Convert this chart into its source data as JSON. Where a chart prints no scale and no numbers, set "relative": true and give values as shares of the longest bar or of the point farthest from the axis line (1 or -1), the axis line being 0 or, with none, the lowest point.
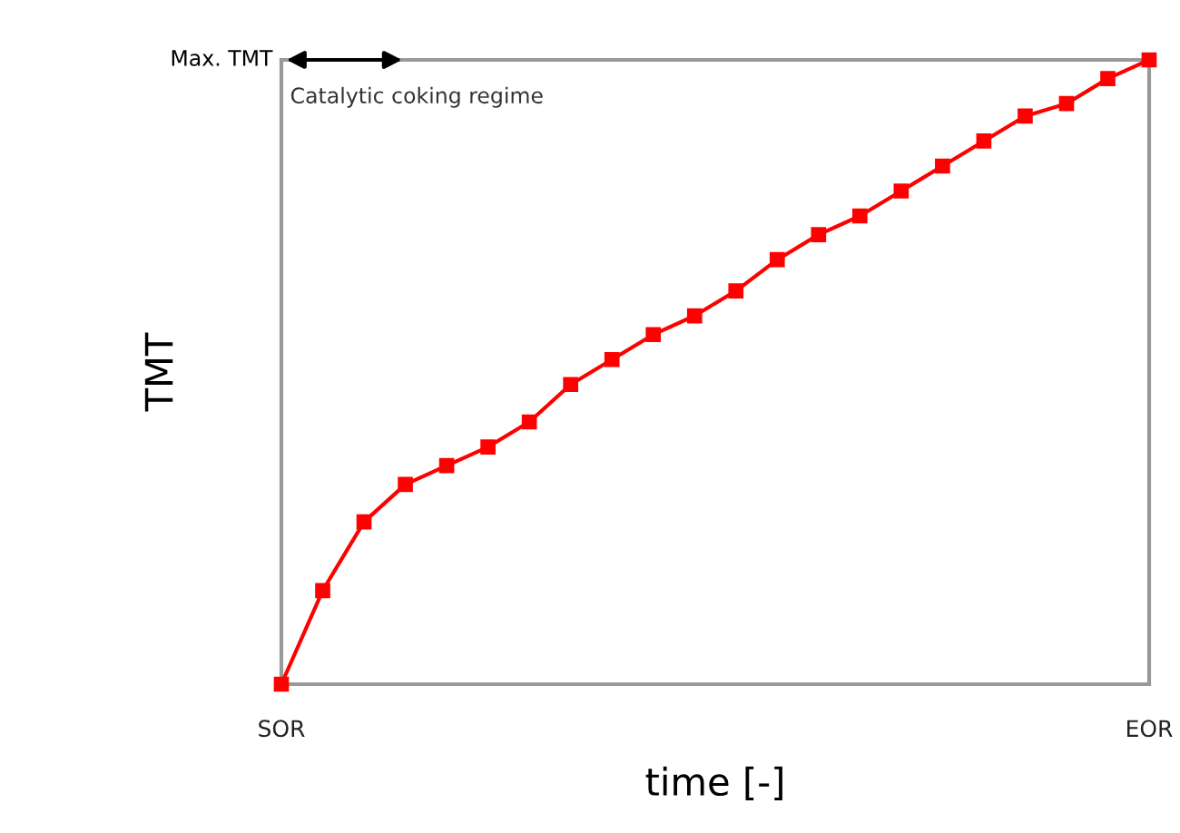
{
  "chart_data": {
    "type": "line",
    "relative": true,
    "xlabel": "time [-]",
    "ylabel": "TMT",
    "categories": [
      "SOR",
      null,
      null,
      null,
      null,
      null,
      null,
      null,
      null,
      null,
      null,
      null,
      null,
      null,
      null,
      null,
      null,
      null,
      null,
      null,
      null,
      "EOR"
    ],
    "series": [
      {
        "color": "#ff0000",
        "values": [
          0,
          0.15,
          0.26,
          0.32,
          0.35,
          0.38,
          0.42,
          0.48,
          0.52,
          0.56,
          0.59,
          0.63,
          0.68,
          0.72,
          0.75,
          0.79,
          0.83,
          0.87,
          0.91,
          0.93,
          0.97,
          1
        ]
      }
    ],
    "annotations": [
      "Max. TMT",
      "Catalytic coking regime"
    ],
    "marker": "square",
    "line_style": "solid",
    "legend": false
  }
}
